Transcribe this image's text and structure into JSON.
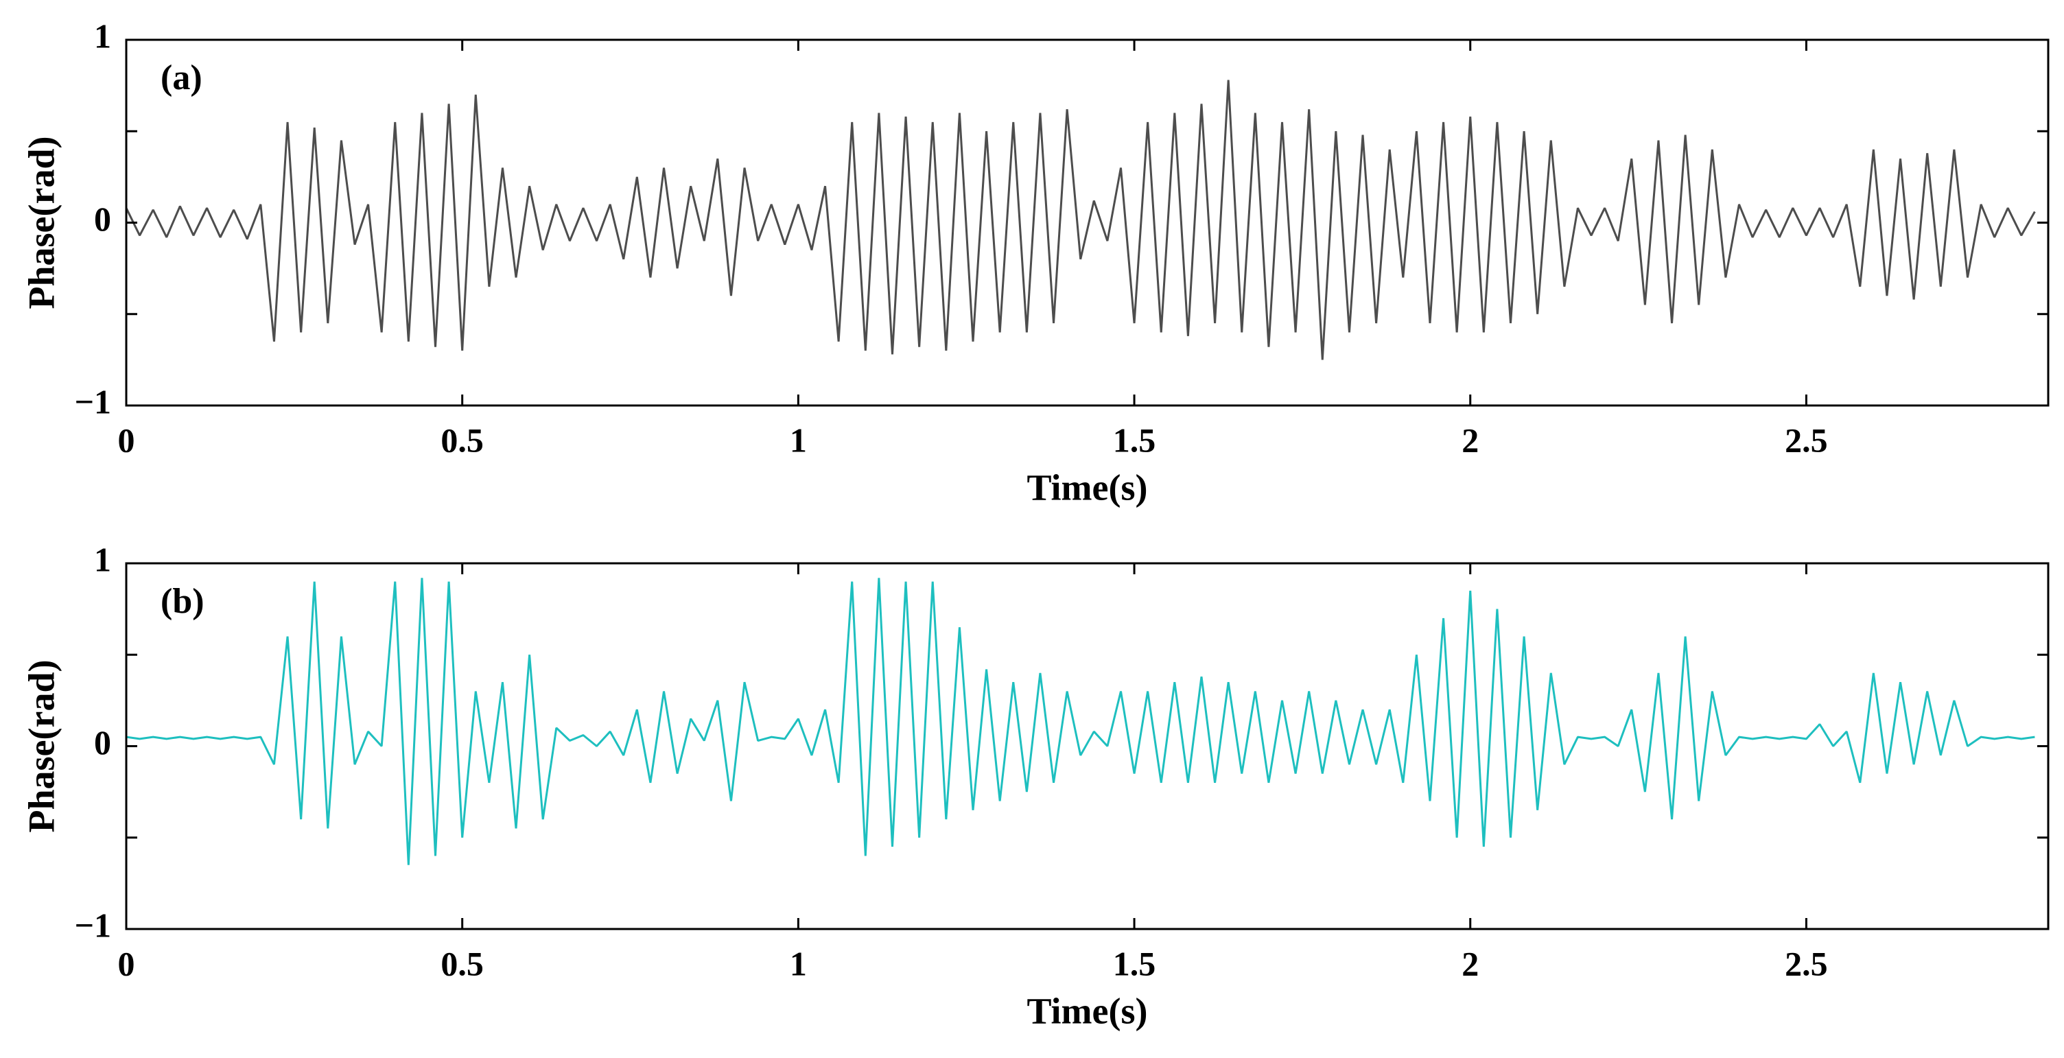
{
  "chart_data": [
    {
      "type": "line",
      "label": "(a)",
      "xlabel": "Time(s)",
      "ylabel": "Phase(rad)",
      "color": "#4d4d4d",
      "xlim": [
        0,
        2.86
      ],
      "ylim": [
        -1,
        1
      ],
      "xticks": [
        0,
        0.5,
        1,
        1.5,
        2,
        2.5
      ],
      "yticks": [
        {
          "value": -1,
          "label": "−1"
        },
        {
          "value": -0.5,
          "label": null
        },
        0,
        {
          "value": 0.5,
          "label": null
        },
        1
      ],
      "x": [
        0,
        0.02,
        0.04,
        0.06,
        0.08,
        0.1,
        0.12,
        0.14,
        0.16,
        0.18,
        0.2,
        0.22,
        0.24,
        0.26,
        0.28,
        0.3,
        0.32,
        0.34,
        0.36,
        0.38,
        0.4,
        0.42,
        0.44,
        0.46,
        0.48,
        0.5,
        0.52,
        0.54,
        0.56,
        0.58,
        0.6,
        0.62,
        0.64,
        0.66,
        0.68,
        0.7,
        0.72,
        0.74,
        0.76,
        0.78,
        0.8,
        0.82,
        0.84,
        0.86,
        0.88,
        0.9,
        0.92,
        0.94,
        0.96,
        0.98,
        1,
        1.02,
        1.04,
        1.06,
        1.08,
        1.1,
        1.12,
        1.14,
        1.16,
        1.18,
        1.2,
        1.22,
        1.24,
        1.26,
        1.28,
        1.3,
        1.32,
        1.34,
        1.36,
        1.38,
        1.4,
        1.42,
        1.44,
        1.46,
        1.48,
        1.5,
        1.52,
        1.54,
        1.56,
        1.58,
        1.6,
        1.62,
        1.64,
        1.66,
        1.68,
        1.7,
        1.72,
        1.74,
        1.76,
        1.78,
        1.8,
        1.82,
        1.84,
        1.86,
        1.88,
        1.9,
        1.92,
        1.94,
        1.96,
        1.98,
        2,
        2.02,
        2.04,
        2.06,
        2.08,
        2.1,
        2.12,
        2.14,
        2.16,
        2.18,
        2.2,
        2.22,
        2.24,
        2.26,
        2.28,
        2.3,
        2.32,
        2.34,
        2.36,
        2.38,
        2.4,
        2.42,
        2.44,
        2.46,
        2.48,
        2.5,
        2.52,
        2.54,
        2.56,
        2.58,
        2.6,
        2.62,
        2.64,
        2.66,
        2.68,
        2.7,
        2.72,
        2.74,
        2.76,
        2.78,
        2.8,
        2.82,
        2.84
      ],
      "values": [
        0.08,
        -0.07,
        0.07,
        -0.08,
        0.09,
        -0.07,
        0.08,
        -0.08,
        0.07,
        -0.09,
        0.1,
        -0.65,
        0.55,
        -0.6,
        0.52,
        -0.55,
        0.45,
        -0.12,
        0.1,
        -0.6,
        0.55,
        -0.65,
        0.6,
        -0.68,
        0.65,
        -0.7,
        0.7,
        -0.35,
        0.3,
        -0.3,
        0.2,
        -0.15,
        0.1,
        -0.1,
        0.08,
        -0.1,
        0.1,
        -0.2,
        0.25,
        -0.3,
        0.3,
        -0.25,
        0.2,
        -0.1,
        0.35,
        -0.4,
        0.3,
        -0.1,
        0.1,
        -0.12,
        0.1,
        -0.15,
        0.2,
        -0.65,
        0.55,
        -0.7,
        0.6,
        -0.72,
        0.58,
        -0.68,
        0.55,
        -0.7,
        0.6,
        -0.65,
        0.5,
        -0.6,
        0.55,
        -0.6,
        0.6,
        -0.55,
        0.62,
        -0.2,
        0.12,
        -0.1,
        0.3,
        -0.55,
        0.55,
        -0.6,
        0.6,
        -0.62,
        0.65,
        -0.55,
        0.78,
        -0.6,
        0.6,
        -0.68,
        0.55,
        -0.6,
        0.62,
        -0.75,
        0.5,
        -0.6,
        0.48,
        -0.55,
        0.4,
        -0.3,
        0.5,
        -0.55,
        0.55,
        -0.6,
        0.58,
        -0.6,
        0.55,
        -0.55,
        0.5,
        -0.5,
        0.45,
        -0.35,
        0.08,
        -0.07,
        0.08,
        -0.1,
        0.35,
        -0.45,
        0.45,
        -0.55,
        0.48,
        -0.45,
        0.4,
        -0.3,
        0.1,
        -0.08,
        0.07,
        -0.08,
        0.08,
        -0.07,
        0.08,
        -0.08,
        0.1,
        -0.35,
        0.4,
        -0.4,
        0.35,
        -0.42,
        0.38,
        -0.35,
        0.4,
        -0.3,
        0.1,
        -0.08,
        0.08,
        -0.07,
        0.06
      ]
    },
    {
      "type": "line",
      "label": "(b)",
      "xlabel": "Time(s)",
      "ylabel": "Phase(rad)",
      "color": "#1ebfbf",
      "xlim": [
        0,
        2.86
      ],
      "ylim": [
        -1,
        1
      ],
      "xticks": [
        0,
        0.5,
        1,
        1.5,
        2,
        2.5
      ],
      "yticks": [
        {
          "value": -1,
          "label": "−1"
        },
        {
          "value": -0.5,
          "label": null
        },
        0,
        {
          "value": 0.5,
          "label": null
        },
        1
      ],
      "x": [
        0,
        0.02,
        0.04,
        0.06,
        0.08,
        0.1,
        0.12,
        0.14,
        0.16,
        0.18,
        0.2,
        0.22,
        0.24,
        0.26,
        0.28,
        0.3,
        0.32,
        0.34,
        0.36,
        0.38,
        0.4,
        0.42,
        0.44,
        0.46,
        0.48,
        0.5,
        0.52,
        0.54,
        0.56,
        0.58,
        0.6,
        0.62,
        0.64,
        0.66,
        0.68,
        0.7,
        0.72,
        0.74,
        0.76,
        0.78,
        0.8,
        0.82,
        0.84,
        0.86,
        0.88,
        0.9,
        0.92,
        0.94,
        0.96,
        0.98,
        1,
        1.02,
        1.04,
        1.06,
        1.08,
        1.1,
        1.12,
        1.14,
        1.16,
        1.18,
        1.2,
        1.22,
        1.24,
        1.26,
        1.28,
        1.3,
        1.32,
        1.34,
        1.36,
        1.38,
        1.4,
        1.42,
        1.44,
        1.46,
        1.48,
        1.5,
        1.52,
        1.54,
        1.56,
        1.58,
        1.6,
        1.62,
        1.64,
        1.66,
        1.68,
        1.7,
        1.72,
        1.74,
        1.76,
        1.78,
        1.8,
        1.82,
        1.84,
        1.86,
        1.88,
        1.9,
        1.92,
        1.94,
        1.96,
        1.98,
        2,
        2.02,
        2.04,
        2.06,
        2.08,
        2.1,
        2.12,
        2.14,
        2.16,
        2.18,
        2.2,
        2.22,
        2.24,
        2.26,
        2.28,
        2.3,
        2.32,
        2.34,
        2.36,
        2.38,
        2.4,
        2.42,
        2.44,
        2.46,
        2.48,
        2.5,
        2.52,
        2.54,
        2.56,
        2.58,
        2.6,
        2.62,
        2.64,
        2.66,
        2.68,
        2.7,
        2.72,
        2.74,
        2.76,
        2.78,
        2.8,
        2.82,
        2.84
      ],
      "values": [
        0.05,
        0.04,
        0.05,
        0.04,
        0.05,
        0.04,
        0.05,
        0.04,
        0.05,
        0.04,
        0.05,
        -0.1,
        0.6,
        -0.4,
        0.9,
        -0.45,
        0.6,
        -0.1,
        0.08,
        0,
        0.9,
        -0.65,
        0.92,
        -0.6,
        0.9,
        -0.5,
        0.3,
        -0.2,
        0.35,
        -0.45,
        0.5,
        -0.4,
        0.1,
        0.03,
        0.06,
        0,
        0.08,
        -0.05,
        0.2,
        -0.2,
        0.3,
        -0.15,
        0.15,
        0.03,
        0.25,
        -0.3,
        0.35,
        0.03,
        0.05,
        0.04,
        0.15,
        -0.05,
        0.2,
        -0.2,
        0.9,
        -0.6,
        0.92,
        -0.55,
        0.9,
        -0.5,
        0.9,
        -0.4,
        0.65,
        -0.35,
        0.42,
        -0.3,
        0.35,
        -0.25,
        0.4,
        -0.2,
        0.3,
        -0.05,
        0.08,
        0,
        0.3,
        -0.15,
        0.3,
        -0.2,
        0.35,
        -0.2,
        0.38,
        -0.2,
        0.35,
        -0.15,
        0.3,
        -0.2,
        0.25,
        -0.15,
        0.3,
        -0.15,
        0.25,
        -0.1,
        0.2,
        -0.1,
        0.2,
        -0.2,
        0.5,
        -0.3,
        0.7,
        -0.5,
        0.85,
        -0.55,
        0.75,
        -0.5,
        0.6,
        -0.35,
        0.4,
        -0.1,
        0.05,
        0.04,
        0.05,
        0,
        0.2,
        -0.25,
        0.4,
        -0.4,
        0.6,
        -0.3,
        0.3,
        -0.05,
        0.05,
        0.04,
        0.05,
        0.04,
        0.05,
        0.04,
        0.12,
        0,
        0.08,
        -0.2,
        0.4,
        -0.15,
        0.35,
        -0.1,
        0.3,
        -0.05,
        0.25,
        0,
        0.05,
        0.04,
        0.05,
        0.04,
        0.05
      ]
    }
  ]
}
